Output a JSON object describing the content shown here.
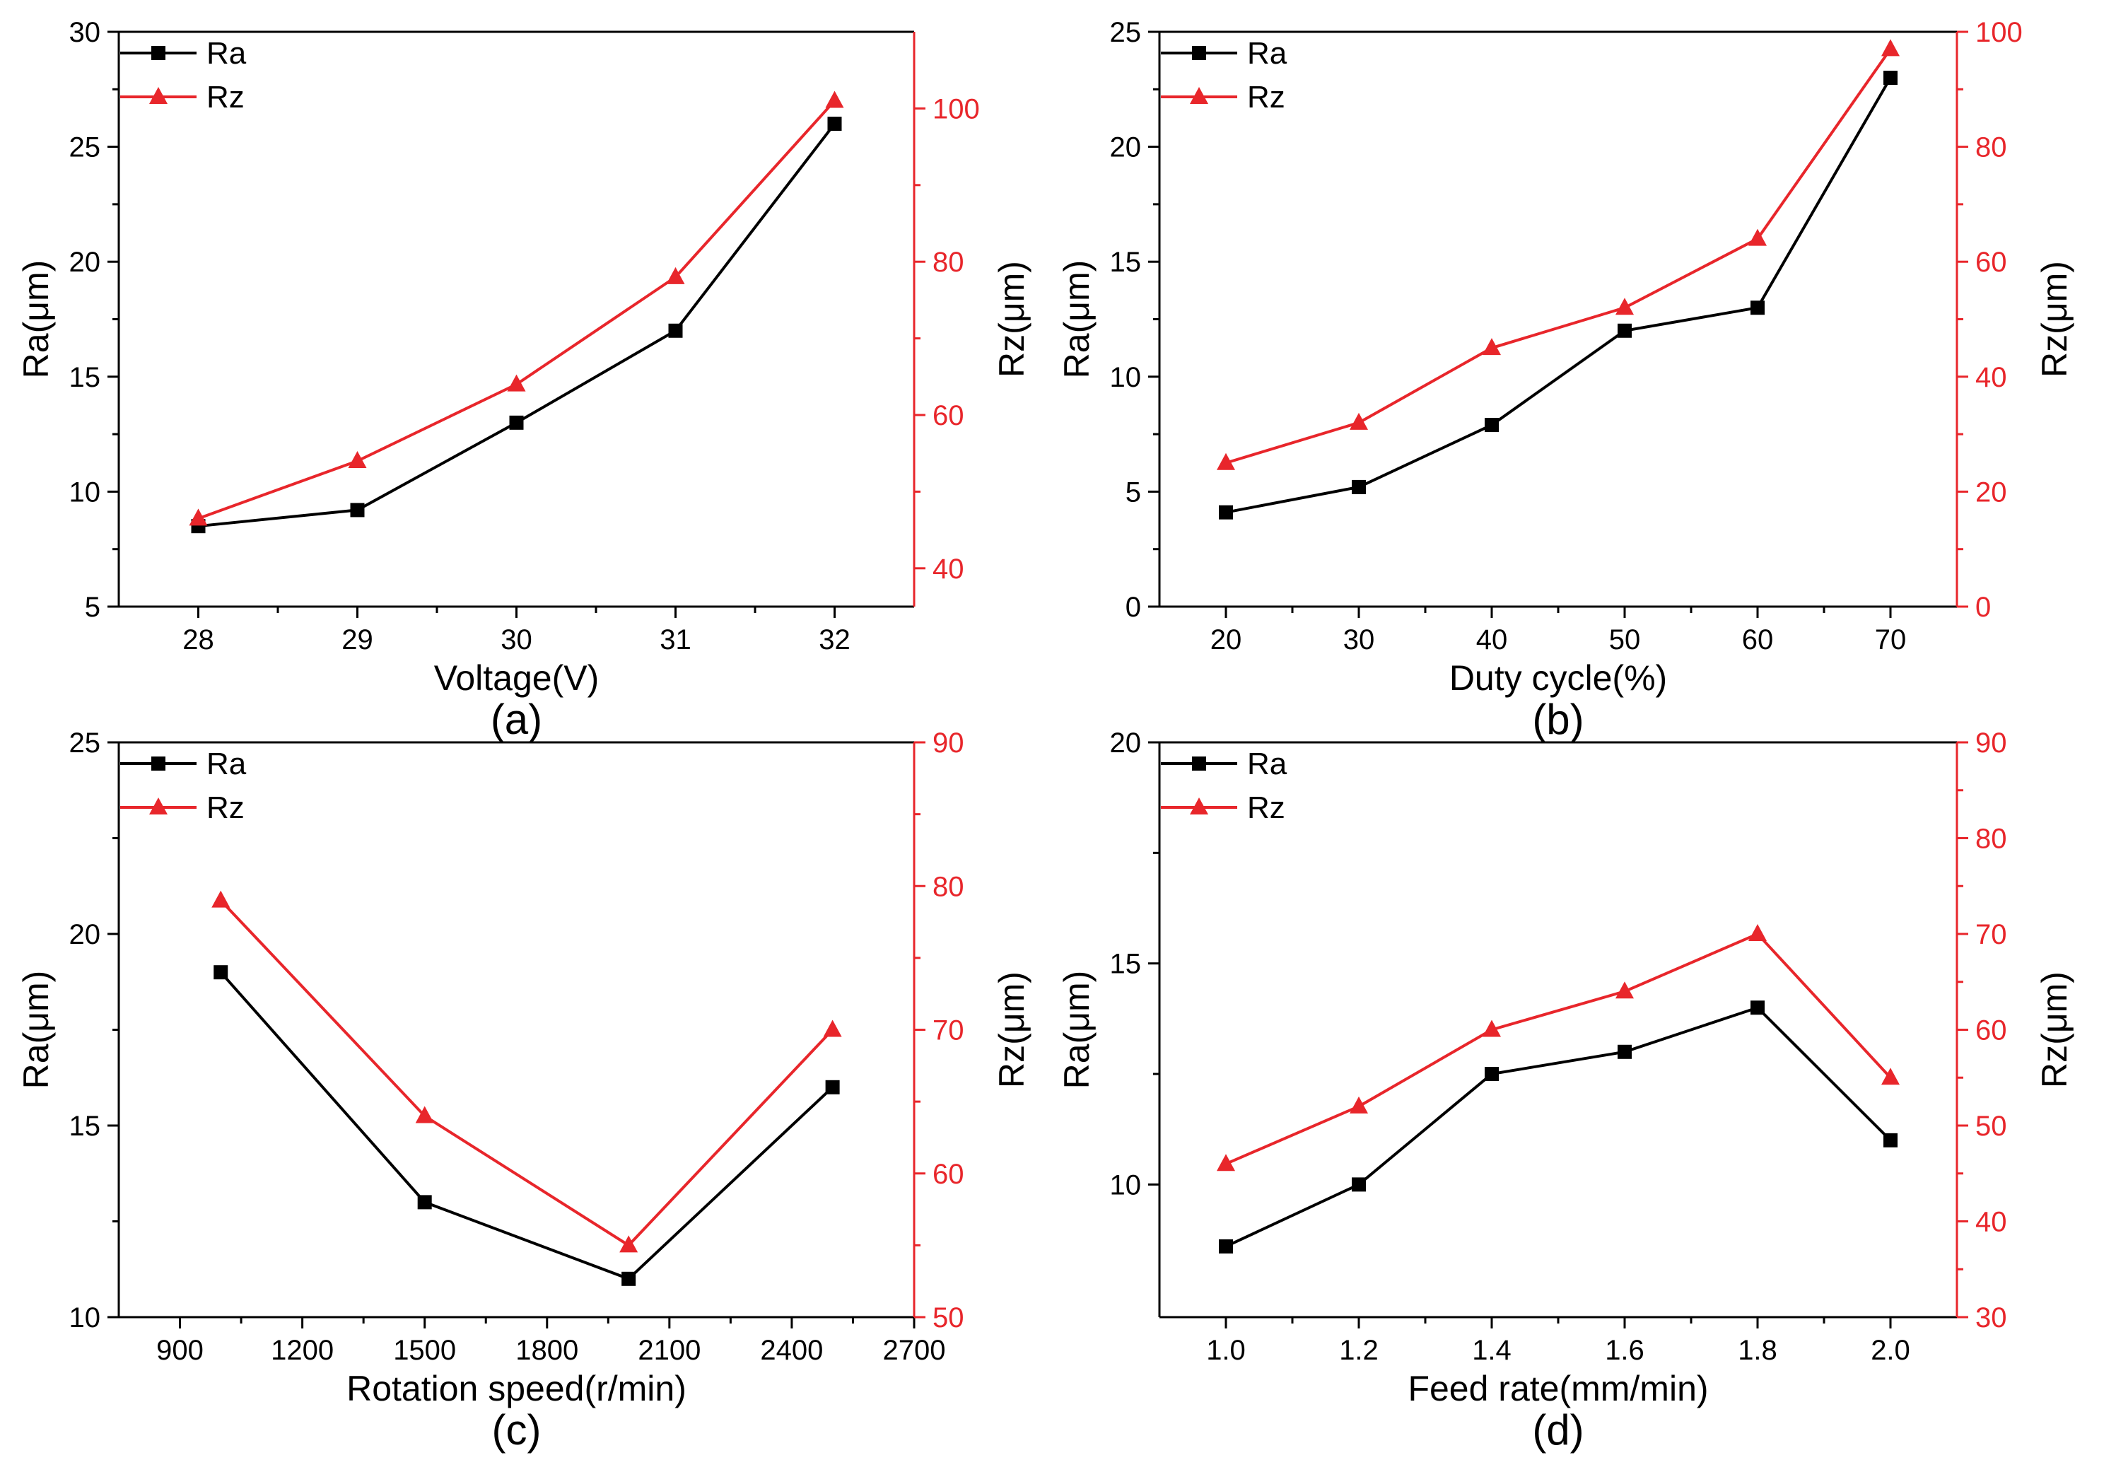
{
  "colors": {
    "ra": "#000000",
    "rz": "#e8262b",
    "axis": "#000000"
  },
  "chart_data": [
    {
      "type": "line",
      "panel_label": "(a)",
      "xlabel": "Voltage(V)",
      "ylabel": "Ra(μm)",
      "y2label": "Rz(μm)",
      "xlim": [
        27.5,
        32.5
      ],
      "ylim": [
        5,
        30
      ],
      "y2lim": [
        35,
        110
      ],
      "xticks": [
        28,
        29,
        30,
        31,
        32
      ],
      "xtick_labels": [
        "28",
        "29",
        "30",
        "31",
        "32"
      ],
      "yticks": [
        5,
        10,
        15,
        20,
        25,
        30
      ],
      "ytick_labels": [
        "5",
        "10",
        "15",
        "20",
        "25",
        "30"
      ],
      "y2ticks": [
        40,
        60,
        80,
        100
      ],
      "y2tick_labels": [
        "40",
        "60",
        "80",
        "100"
      ],
      "x": [
        28,
        29,
        30,
        31,
        32
      ],
      "series": [
        {
          "name": "Ra",
          "axis": "left",
          "marker": "square",
          "values": [
            8.5,
            9.2,
            13,
            17,
            26
          ]
        },
        {
          "name": "Rz",
          "axis": "right",
          "marker": "triangle",
          "values": [
            46.5,
            54,
            64,
            78,
            101
          ]
        }
      ],
      "legend": [
        "Ra",
        "Rz"
      ],
      "legend_position": "top-left"
    },
    {
      "type": "line",
      "panel_label": "(b)",
      "xlabel": "Duty cycle(%)",
      "ylabel": "Ra(μm)",
      "y2label": "Rz(μm)",
      "xlim": [
        15,
        75
      ],
      "ylim": [
        0,
        25
      ],
      "y2lim": [
        0,
        100
      ],
      "xticks": [
        20,
        30,
        40,
        50,
        60,
        70
      ],
      "xtick_labels": [
        "20",
        "30",
        "40",
        "50",
        "60",
        "70"
      ],
      "yticks": [
        0,
        5,
        10,
        15,
        20,
        25
      ],
      "ytick_labels": [
        "0",
        "5",
        "10",
        "15",
        "20",
        "25"
      ],
      "y2ticks": [
        0,
        20,
        40,
        60,
        80,
        100
      ],
      "y2tick_labels": [
        "0",
        "20",
        "40",
        "60",
        "80",
        "100"
      ],
      "x": [
        20,
        30,
        40,
        50,
        60,
        70
      ],
      "series": [
        {
          "name": "Ra",
          "axis": "left",
          "marker": "square",
          "values": [
            4.1,
            5.2,
            7.9,
            12,
            13,
            23
          ]
        },
        {
          "name": "Rz",
          "axis": "right",
          "marker": "triangle",
          "values": [
            25,
            32,
            45,
            52,
            64,
            97
          ]
        }
      ],
      "legend": [
        "Ra",
        "Rz"
      ],
      "legend_position": "top-left"
    },
    {
      "type": "line",
      "panel_label": "(c)",
      "xlabel": "Rotation speed(r/min)",
      "ylabel": "Ra(μm)",
      "y2label": "Rz(μm)",
      "xlim": [
        750,
        2700
      ],
      "ylim": [
        10,
        25
      ],
      "y2lim": [
        50,
        90
      ],
      "xticks": [
        900,
        1200,
        1500,
        1800,
        2100,
        2400,
        2700
      ],
      "xtick_labels": [
        "900",
        "1200",
        "1500",
        "1800",
        "2100",
        "2400",
        "2700"
      ],
      "yticks": [
        10,
        15,
        20,
        25
      ],
      "ytick_labels": [
        "10",
        "15",
        "20",
        "25"
      ],
      "y2ticks": [
        50,
        60,
        70,
        80,
        90
      ],
      "y2tick_labels": [
        "50",
        "60",
        "70",
        "80",
        "90"
      ],
      "x": [
        1000,
        1500,
        2000,
        2500
      ],
      "series": [
        {
          "name": "Ra",
          "axis": "left",
          "marker": "square",
          "values": [
            19,
            13,
            11,
            16
          ]
        },
        {
          "name": "Rz",
          "axis": "right",
          "marker": "triangle",
          "values": [
            79,
            64,
            55,
            70
          ]
        }
      ],
      "legend": [
        "Ra",
        "Rz"
      ],
      "legend_position": "top-left"
    },
    {
      "type": "line",
      "panel_label": "(d)",
      "xlabel": "Feed rate(mm/min)",
      "ylabel": "Ra(μm)",
      "y2label": "Rz(μm)",
      "xlim": [
        0.9,
        2.1
      ],
      "ylim": [
        7,
        20
      ],
      "y2lim": [
        30,
        90
      ],
      "xticks": [
        1.0,
        1.2,
        1.4,
        1.6,
        1.8,
        2.0
      ],
      "xtick_labels": [
        "1.0",
        "1.2",
        "1.4",
        "1.6",
        "1.8",
        "2.0"
      ],
      "yticks": [
        10,
        15,
        20
      ],
      "ytick_labels": [
        "10",
        "15",
        "20"
      ],
      "y2ticks": [
        30,
        40,
        50,
        60,
        70,
        80,
        90
      ],
      "y2tick_labels": [
        "30",
        "40",
        "50",
        "60",
        "70",
        "80",
        "90"
      ],
      "x": [
        1.0,
        1.2,
        1.4,
        1.6,
        1.8,
        2.0
      ],
      "series": [
        {
          "name": "Ra",
          "axis": "left",
          "marker": "square",
          "values": [
            8.6,
            10,
            12.5,
            13,
            14,
            11
          ]
        },
        {
          "name": "Rz",
          "axis": "right",
          "marker": "triangle",
          "values": [
            46,
            52,
            60,
            64,
            70,
            55
          ]
        }
      ],
      "legend": [
        "Ra",
        "Rz"
      ],
      "legend_position": "top-left"
    }
  ]
}
